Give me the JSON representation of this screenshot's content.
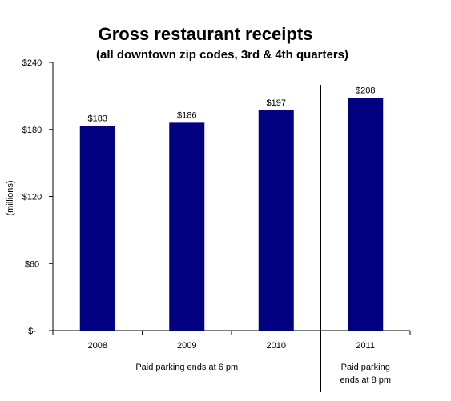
{
  "chart_data": {
    "type": "bar",
    "title": "Gross restaurant receipts",
    "subtitle": "(all downtown zip codes, 3rd & 4th quarters)",
    "xlabel": "",
    "ylabel": "(millions)",
    "categories": [
      "2008",
      "2009",
      "2010",
      "2011"
    ],
    "values": [
      183,
      186,
      197,
      208
    ],
    "value_labels": [
      "$183",
      "$186",
      "$197",
      "$208"
    ],
    "ylim": [
      0,
      240
    ],
    "yticks": [
      0,
      60,
      120,
      180,
      240
    ],
    "ytick_labels": [
      "$-",
      "$60",
      "$120",
      "$180",
      "$240"
    ],
    "bar_color": "#000080",
    "grid": false,
    "divider_after_category": 3,
    "annotations": [
      {
        "text": "Paid parking ends at 6 pm",
        "spans_categories": [
          0,
          2
        ]
      },
      {
        "text": [
          "Paid parking",
          "ends at 8 pm"
        ],
        "spans_categories": [
          3,
          3
        ]
      }
    ]
  }
}
